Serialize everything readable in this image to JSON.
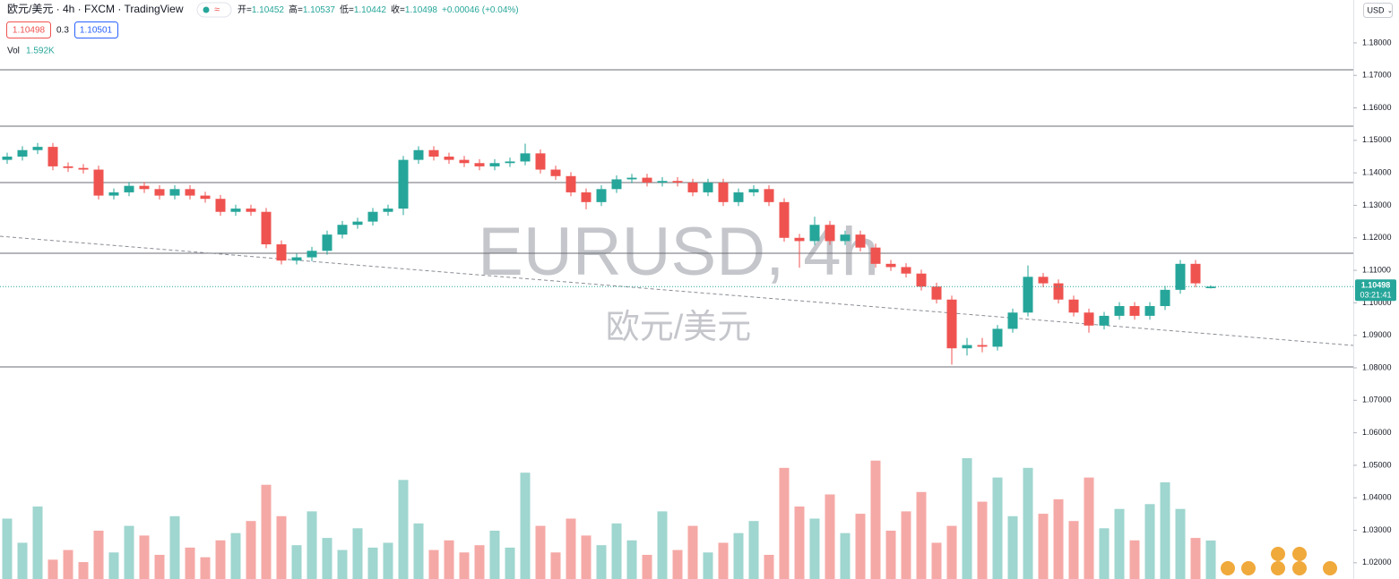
{
  "header": {
    "symbol": "欧元/美元 · 4h · FXCM · TradingView",
    "ohlc": [
      {
        "label": "开=",
        "value": "1.10452"
      },
      {
        "label": "高=",
        "value": "1.10537"
      },
      {
        "label": "低=",
        "value": "1.10442"
      },
      {
        "label": "收=",
        "value": "1.10498"
      }
    ],
    "change": "+0.00046 (+0.04%)",
    "sell": "1.10498",
    "spread": "0.3",
    "buy": "1.10501",
    "vol_label": "Vol",
    "vol_value": "1.592K",
    "currency": "USD",
    "watermark_symbol": "EURUSD, 4h",
    "watermark_name": "欧元/美元",
    "last_price": "1.10498",
    "countdown": "03:21:41"
  },
  "chart_data": {
    "type": "candlestick",
    "up_color": "#26a69a",
    "down_color": "#ef5350",
    "volume_up_color": "#9fd6cf",
    "volume_down_color": "#f5a9a6",
    "ylim": [
      1.015,
      1.1932
    ],
    "vlim": [
      0,
      6
    ],
    "yticks": [
      {
        "value": 1.02,
        "label": "1.02000"
      },
      {
        "value": 1.03,
        "label": "1.03000"
      },
      {
        "value": 1.04,
        "label": "1.04000"
      },
      {
        "value": 1.05,
        "label": "1.05000"
      },
      {
        "value": 1.06,
        "label": "1.06000"
      },
      {
        "value": 1.07,
        "label": "1.07000"
      },
      {
        "value": 1.08,
        "label": "1.08000"
      },
      {
        "value": 1.09,
        "label": "1.09000"
      },
      {
        "value": 1.1,
        "label": "1.10000"
      },
      {
        "value": 1.11,
        "label": "1.11000"
      },
      {
        "value": 1.12,
        "label": "1.12000"
      },
      {
        "value": 1.13,
        "label": "1.13000"
      },
      {
        "value": 1.14,
        "label": "1.14000"
      },
      {
        "value": 1.15,
        "label": "1.15000"
      },
      {
        "value": 1.16,
        "label": "1.16000"
      },
      {
        "value": 1.17,
        "label": "1.17000"
      },
      {
        "value": 1.18,
        "label": "1.18000"
      }
    ],
    "open": [
      1.144,
      1.145,
      1.147,
      1.148,
      1.142,
      1.1415,
      1.141,
      1.133,
      1.134,
      1.136,
      1.135,
      1.133,
      1.135,
      1.133,
      1.132,
      1.128,
      1.129,
      1.128,
      1.118,
      1.113,
      1.114,
      1.116,
      1.121,
      1.124,
      1.125,
      1.128,
      1.129,
      1.144,
      1.147,
      1.145,
      1.144,
      1.143,
      1.142,
      1.143,
      1.1435,
      1.146,
      1.141,
      1.139,
      1.134,
      1.131,
      1.135,
      1.138,
      1.1385,
      1.137,
      1.1375,
      1.137,
      1.134,
      1.137,
      1.131,
      1.134,
      1.135,
      1.131,
      1.12,
      1.119,
      1.124,
      1.119,
      1.121,
      1.117,
      1.112,
      1.111,
      1.109,
      1.105,
      1.101,
      1.086,
      1.087,
      1.0865,
      1.092,
      1.097,
      1.108,
      1.106,
      1.101,
      1.097,
      1.093,
      1.096,
      1.099,
      1.096,
      1.099,
      1.104,
      1.112,
      1.10452
    ],
    "high": [
      1.1462,
      1.1482,
      1.1492,
      1.1492,
      1.1432,
      1.1427,
      1.1422,
      1.1352,
      1.1372,
      1.1372,
      1.1362,
      1.1362,
      1.1362,
      1.1342,
      1.1332,
      1.1302,
      1.1302,
      1.1292,
      1.1192,
      1.1152,
      1.1172,
      1.1222,
      1.1252,
      1.1262,
      1.1292,
      1.1302,
      1.1452,
      1.1482,
      1.1482,
      1.1462,
      1.1452,
      1.1442,
      1.1442,
      1.1447,
      1.149,
      1.1472,
      1.1422,
      1.1402,
      1.1352,
      1.1362,
      1.1392,
      1.1397,
      1.1397,
      1.1387,
      1.1387,
      1.1382,
      1.1382,
      1.1382,
      1.1352,
      1.1362,
      1.1362,
      1.1322,
      1.1212,
      1.1265,
      1.1252,
      1.1222,
      1.1222,
      1.1182,
      1.1132,
      1.1122,
      1.1102,
      1.1062,
      1.1022,
      1.0892,
      1.0892,
      1.0932,
      1.0982,
      1.1115,
      1.1092,
      1.1072,
      1.1022,
      1.0982,
      1.0972,
      1.1002,
      1.1002,
      1.1002,
      1.1052,
      1.1132,
      1.1132,
      1.10537
    ],
    "low": [
      1.1428,
      1.1438,
      1.1458,
      1.1408,
      1.1403,
      1.1398,
      1.1318,
      1.1318,
      1.1328,
      1.1338,
      1.1318,
      1.1318,
      1.1318,
      1.1308,
      1.1268,
      1.1268,
      1.1268,
      1.1168,
      1.1118,
      1.1118,
      1.1128,
      1.1148,
      1.1198,
      1.1228,
      1.1238,
      1.1268,
      1.127,
      1.1428,
      1.1438,
      1.1428,
      1.1418,
      1.1408,
      1.1408,
      1.1418,
      1.1423,
      1.1398,
      1.1378,
      1.1328,
      1.1288,
      1.1298,
      1.1338,
      1.1368,
      1.1358,
      1.1358,
      1.1358,
      1.1328,
      1.1328,
      1.1298,
      1.1298,
      1.1328,
      1.1298,
      1.1188,
      1.1108,
      1.1178,
      1.1178,
      1.1178,
      1.1158,
      1.1108,
      1.1098,
      1.1078,
      1.1038,
      1.0998,
      1.081,
      1.0838,
      1.0848,
      1.0853,
      1.0908,
      1.0958,
      1.1048,
      1.0998,
      1.0958,
      1.0908,
      1.0918,
      1.0948,
      1.0948,
      1.0948,
      1.0978,
      1.1028,
      1.1048,
      1.10442
    ],
    "close": [
      1.145,
      1.147,
      1.148,
      1.142,
      1.1415,
      1.141,
      1.133,
      1.134,
      1.136,
      1.135,
      1.133,
      1.135,
      1.133,
      1.132,
      1.128,
      1.129,
      1.128,
      1.118,
      1.113,
      1.114,
      1.116,
      1.121,
      1.124,
      1.125,
      1.128,
      1.129,
      1.144,
      1.147,
      1.145,
      1.144,
      1.143,
      1.142,
      1.143,
      1.1435,
      1.146,
      1.141,
      1.139,
      1.134,
      1.131,
      1.135,
      1.138,
      1.1385,
      1.137,
      1.1375,
      1.137,
      1.134,
      1.137,
      1.131,
      1.134,
      1.135,
      1.131,
      1.12,
      1.119,
      1.124,
      1.119,
      1.121,
      1.117,
      1.112,
      1.111,
      1.109,
      1.105,
      1.101,
      1.086,
      1.087,
      1.0865,
      1.092,
      1.097,
      1.108,
      1.106,
      1.101,
      1.097,
      1.093,
      1.096,
      1.099,
      1.096,
      1.099,
      1.104,
      1.112,
      1.106,
      1.10498
    ],
    "volume": [
      2.5,
      1.5,
      3.0,
      0.8,
      1.2,
      0.7,
      2.0,
      1.1,
      2.2,
      1.8,
      1.0,
      2.6,
      1.3,
      0.9,
      1.6,
      1.9,
      2.4,
      3.9,
      2.6,
      1.4,
      2.8,
      1.7,
      1.2,
      2.1,
      1.3,
      1.5,
      4.1,
      2.3,
      1.2,
      1.6,
      1.1,
      1.4,
      2.0,
      1.3,
      4.4,
      2.2,
      1.1,
      2.5,
      1.8,
      1.4,
      2.3,
      1.6,
      1.0,
      2.8,
      1.2,
      2.2,
      1.1,
      1.5,
      1.9,
      2.4,
      1.0,
      4.6,
      3.0,
      2.5,
      3.5,
      1.9,
      2.7,
      4.9,
      2.0,
      2.8,
      3.6,
      1.5,
      2.2,
      5.0,
      3.2,
      4.2,
      2.6,
      4.6,
      2.7,
      3.3,
      2.4,
      4.2,
      2.1,
      2.9,
      1.6,
      3.1,
      4.0,
      2.9,
      1.7,
      1.592
    ]
  }
}
